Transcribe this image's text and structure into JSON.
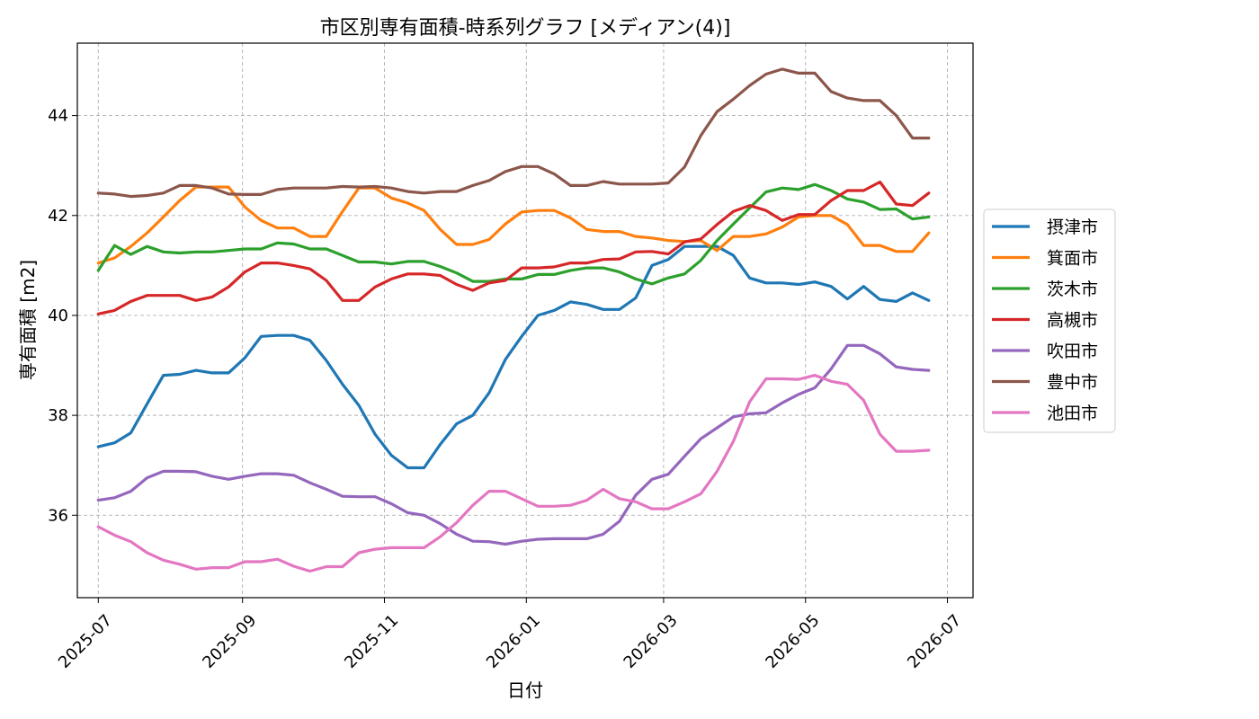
{
  "chart_data": {
    "type": "line",
    "title": "市区別専有面積-時系列グラフ [メディアン(4)]",
    "xlabel": "日付",
    "ylabel": "専有面積 [m2]",
    "x_range": [
      "2025-06-22",
      "2026-07-12"
    ],
    "ylim": [
      34.35,
      45.45
    ],
    "x_ticks": [
      {
        "date": "2025-07-01",
        "label": "2025-07"
      },
      {
        "date": "2025-09-01",
        "label": "2025-09"
      },
      {
        "date": "2025-11-01",
        "label": "2025-11"
      },
      {
        "date": "2026-01-01",
        "label": "2026-01"
      },
      {
        "date": "2026-03-01",
        "label": "2026-03"
      },
      {
        "date": "2026-05-01",
        "label": "2026-05"
      },
      {
        "date": "2026-07-01",
        "label": "2026-07"
      }
    ],
    "y_ticks": [
      36,
      38,
      40,
      42,
      44
    ],
    "grid": true,
    "legend_position": "right-center",
    "x": [
      "2025-07-01",
      "2025-07-08",
      "2025-07-15",
      "2025-07-22",
      "2025-07-29",
      "2025-08-05",
      "2025-08-12",
      "2025-08-19",
      "2025-08-26",
      "2025-09-02",
      "2025-09-09",
      "2025-09-16",
      "2025-09-23",
      "2025-09-30",
      "2025-10-07",
      "2025-10-14",
      "2025-10-21",
      "2025-10-28",
      "2025-11-04",
      "2025-11-11",
      "2025-11-18",
      "2025-11-25",
      "2025-12-02",
      "2025-12-09",
      "2025-12-16",
      "2025-12-23",
      "2025-12-30",
      "2026-01-06",
      "2026-01-13",
      "2026-01-20",
      "2026-01-27",
      "2026-02-03",
      "2026-02-10",
      "2026-02-17",
      "2026-02-24",
      "2026-03-03",
      "2026-03-10",
      "2026-03-17",
      "2026-03-24",
      "2026-03-31",
      "2026-04-07",
      "2026-04-14",
      "2026-04-21",
      "2026-04-28",
      "2026-05-05",
      "2026-05-12",
      "2026-05-19",
      "2026-05-26",
      "2026-06-02",
      "2026-06-09",
      "2026-06-16",
      "2026-06-23"
    ],
    "series": [
      {
        "name": "摂津市",
        "color": "#1f77b4",
        "values": [
          37.37,
          37.45,
          37.65,
          38.23,
          38.8,
          38.82,
          38.9,
          38.85,
          38.85,
          39.15,
          39.58,
          39.6,
          39.6,
          39.5,
          39.1,
          38.62,
          38.2,
          37.62,
          37.2,
          36.95,
          36.95,
          37.42,
          37.83,
          38.0,
          38.45,
          39.12,
          39.58,
          40.0,
          40.1,
          40.27,
          40.22,
          40.12,
          40.12,
          40.35,
          41.0,
          41.12,
          41.38,
          41.38,
          41.38,
          41.2,
          40.75,
          40.65,
          40.65,
          40.62,
          40.67,
          40.58,
          40.33,
          40.58,
          40.32,
          40.28,
          40.45,
          40.3
        ]
      },
      {
        "name": "箕面市",
        "color": "#ff7f0e",
        "values": [
          41.05,
          41.15,
          41.38,
          41.65,
          41.97,
          42.3,
          42.57,
          42.57,
          42.57,
          42.17,
          41.9,
          41.75,
          41.75,
          41.58,
          41.58,
          42.08,
          42.55,
          42.55,
          42.35,
          42.25,
          42.1,
          41.72,
          41.42,
          41.42,
          41.52,
          41.83,
          42.07,
          42.1,
          42.1,
          41.95,
          41.72,
          41.68,
          41.68,
          41.58,
          41.55,
          41.5,
          41.48,
          41.5,
          41.3,
          41.58,
          41.58,
          41.63,
          41.77,
          41.97,
          42.0,
          42.0,
          41.82,
          41.4,
          41.4,
          41.28,
          41.28,
          41.65
        ]
      },
      {
        "name": "茨木市",
        "color": "#2ca02c",
        "values": [
          40.9,
          41.4,
          41.22,
          41.38,
          41.27,
          41.25,
          41.27,
          41.27,
          41.3,
          41.33,
          41.33,
          41.45,
          41.43,
          41.33,
          41.33,
          41.2,
          41.07,
          41.07,
          41.03,
          41.08,
          41.08,
          40.98,
          40.85,
          40.68,
          40.68,
          40.73,
          40.73,
          40.82,
          40.82,
          40.9,
          40.95,
          40.95,
          40.87,
          40.73,
          40.63,
          40.75,
          40.83,
          41.1,
          41.5,
          41.83,
          42.15,
          42.47,
          42.55,
          42.52,
          42.62,
          42.5,
          42.33,
          42.27,
          42.12,
          42.13,
          41.93,
          41.97
        ]
      },
      {
        "name": "高槻市",
        "color": "#d62728",
        "values": [
          40.03,
          40.1,
          40.28,
          40.4,
          40.4,
          40.4,
          40.3,
          40.37,
          40.57,
          40.87,
          41.05,
          41.05,
          41.0,
          40.93,
          40.7,
          40.3,
          40.3,
          40.57,
          40.73,
          40.83,
          40.83,
          40.8,
          40.62,
          40.5,
          40.65,
          40.7,
          40.95,
          40.95,
          40.97,
          41.05,
          41.05,
          41.12,
          41.13,
          41.27,
          41.28,
          41.23,
          41.47,
          41.53,
          41.82,
          42.08,
          42.2,
          42.1,
          41.9,
          42.02,
          42.02,
          42.3,
          42.5,
          42.5,
          42.67,
          42.23,
          42.2,
          42.45
        ]
      },
      {
        "name": "吹田市",
        "color": "#9467bd",
        "values": [
          36.3,
          36.35,
          36.48,
          36.75,
          36.88,
          36.88,
          36.87,
          36.78,
          36.72,
          36.78,
          36.83,
          36.83,
          36.8,
          36.65,
          36.52,
          36.38,
          36.37,
          36.37,
          36.23,
          36.05,
          36.0,
          35.83,
          35.62,
          35.48,
          35.47,
          35.42,
          35.48,
          35.52,
          35.53,
          35.53,
          35.53,
          35.62,
          35.88,
          36.4,
          36.72,
          36.82,
          37.18,
          37.53,
          37.75,
          37.97,
          38.03,
          38.05,
          38.25,
          38.42,
          38.55,
          38.93,
          39.4,
          39.4,
          39.23,
          38.97,
          38.92,
          38.9
        ]
      },
      {
        "name": "豊中市",
        "color": "#8c564b",
        "values": [
          42.45,
          42.43,
          42.38,
          42.4,
          42.45,
          42.6,
          42.6,
          42.55,
          42.43,
          42.42,
          42.42,
          42.52,
          42.55,
          42.55,
          42.55,
          42.58,
          42.57,
          42.58,
          42.55,
          42.48,
          42.45,
          42.48,
          42.48,
          42.6,
          42.7,
          42.88,
          42.98,
          42.98,
          42.83,
          42.6,
          42.6,
          42.68,
          42.63,
          42.63,
          42.63,
          42.65,
          42.97,
          43.6,
          44.08,
          44.33,
          44.6,
          44.83,
          44.93,
          44.85,
          44.85,
          44.48,
          44.35,
          44.3,
          44.3,
          44.0,
          43.55,
          43.55
        ]
      },
      {
        "name": "池田市",
        "color": "#e377c2",
        "values": [
          35.77,
          35.6,
          35.47,
          35.25,
          35.1,
          35.02,
          34.92,
          34.95,
          34.95,
          35.07,
          35.07,
          35.12,
          34.98,
          34.88,
          34.97,
          34.97,
          35.25,
          35.32,
          35.35,
          35.35,
          35.35,
          35.57,
          35.85,
          36.2,
          36.48,
          36.48,
          36.33,
          36.18,
          36.18,
          36.2,
          36.3,
          36.52,
          36.33,
          36.27,
          36.13,
          36.13,
          36.27,
          36.43,
          36.88,
          37.48,
          38.27,
          38.73,
          38.73,
          38.72,
          38.8,
          38.68,
          38.62,
          38.3,
          37.62,
          37.28,
          37.28,
          37.3
        ]
      }
    ]
  }
}
